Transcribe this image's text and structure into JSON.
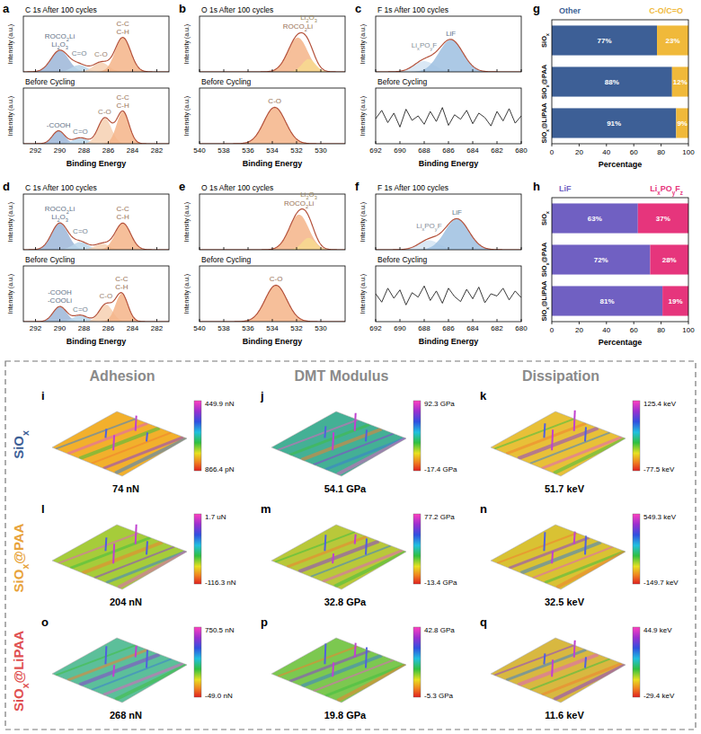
{
  "chart_data": [
    {
      "type": "line",
      "panel_label": "a",
      "x_label": "Binding Energy",
      "y_label": "Intensity (a.u.)",
      "xlim": [
        293,
        281
      ],
      "xticks": [
        292,
        290,
        288,
        286,
        284,
        282
      ],
      "tick_labels": "x",
      "subplots": [
        {
          "title": "C 1s After 100 cycles",
          "ylim": [
            0,
            1.3
          ],
          "peaks": [
            {
              "label": [
                "ROCO2Li",
                "Li2O3"
              ],
              "center": 290.0,
              "height": 0.5,
              "fwhm": 1.7,
              "color": "#9cb6d8"
            },
            {
              "label": [
                "C=O"
              ],
              "center": 288.4,
              "height": 0.16,
              "fwhm": 1.5,
              "color": "#b9d5ea"
            },
            {
              "label": [
                "C-O"
              ],
              "center": 286.6,
              "height": 0.22,
              "fwhm": 1.5,
              "color": "#f6d0b2"
            },
            {
              "label": [
                "C-C",
                "C-H"
              ],
              "center": 284.8,
              "height": 0.8,
              "fwhm": 1.5,
              "color": "#f4b488"
            }
          ]
        },
        {
          "title": "Before Cycling",
          "ylim": [
            0,
            1.3
          ],
          "peaks": [
            {
              "label": [
                "-COOH"
              ],
              "center": 290.1,
              "height": 0.3,
              "fwhm": 1.2,
              "color": "#9cb6d8"
            },
            {
              "label": [
                "C=O"
              ],
              "center": 288.3,
              "height": 0.14,
              "fwhm": 1.4,
              "color": "#b9d5ea"
            },
            {
              "label": [
                "C-O"
              ],
              "center": 286.3,
              "height": 0.6,
              "fwhm": 1.3,
              "color": "#f6d0b2"
            },
            {
              "label": [
                "C-C",
                "C-H"
              ],
              "center": 284.8,
              "height": 0.75,
              "fwhm": 1.2,
              "color": "#f4b488"
            }
          ]
        }
      ]
    },
    {
      "type": "line",
      "panel_label": "b",
      "x_label": "Binding Energy",
      "y_label": "Intensity (a.u.)",
      "xlim": [
        540,
        528
      ],
      "xticks": [
        540,
        538,
        536,
        534,
        532,
        530
      ],
      "tick_labels": "x",
      "subplots": [
        {
          "title": "O 1s After 100 cycles",
          "ylim": [
            0,
            1.3
          ],
          "peaks": [
            {
              "label": [
                "ROCO2Li"
              ],
              "center": 531.9,
              "height": 0.8,
              "fwhm": 1.9,
              "color": "#f4b488"
            },
            {
              "label": [
                "Li2O3"
              ],
              "center": 531.0,
              "height": 0.3,
              "fwhm": 1.3,
              "color": "#f7d98f"
            }
          ]
        },
        {
          "title": "Before Cycling",
          "ylim": [
            0,
            1.3
          ],
          "peaks": [
            {
              "label": [
                "C-O"
              ],
              "center": 533.8,
              "height": 0.85,
              "fwhm": 2.1,
              "color": "#f4b488"
            }
          ]
        }
      ]
    },
    {
      "type": "line",
      "panel_label": "c",
      "x_label": "Binding Energy",
      "y_label": "Intensity (a.u.)",
      "xlim": [
        692,
        680
      ],
      "xticks": [
        692,
        690,
        688,
        686,
        684,
        682,
        680
      ],
      "tick_labels": "x",
      "subplots": [
        {
          "title": "F 1s After 100 cycles",
          "ylim": [
            0,
            1.3
          ],
          "peaks": [
            {
              "label": [
                "LixPOyF"
              ],
              "center": 688.0,
              "height": 0.25,
              "fwhm": 2.0,
              "color": "#d3e4f3"
            },
            {
              "label": [
                "LiF"
              ],
              "center": 685.8,
              "height": 0.75,
              "fwhm": 2.3,
              "color": "#9dbfe0"
            }
          ]
        },
        {
          "title": "Before Cycling",
          "ylim": [
            0,
            1
          ],
          "series": [
            {
              "x": [
                692,
                691.5,
                691,
                690.5,
                690,
                689.5,
                689,
                688.5,
                688,
                687.5,
                687,
                686.5,
                686,
                685.5,
                685,
                684.5,
                684,
                683.5,
                683,
                682.5,
                682,
                681.5,
                681,
                680.5,
                680
              ],
              "values": [
                0.45,
                0.6,
                0.38,
                0.55,
                0.3,
                0.62,
                0.42,
                0.5,
                0.35,
                0.58,
                0.4,
                0.65,
                0.33,
                0.52,
                0.44,
                0.6,
                0.36,
                0.55,
                0.47,
                0.32,
                0.58,
                0.41,
                0.63,
                0.37,
                0.5
              ]
            }
          ]
        }
      ]
    },
    {
      "type": "line",
      "panel_label": "d",
      "x_label": "Binding Energy",
      "y_label": "Intensity (a.u.)",
      "xlim": [
        293,
        281
      ],
      "xticks": [
        292,
        290,
        288,
        286,
        284,
        282
      ],
      "tick_labels": "x",
      "subplots": [
        {
          "title": "C 1s After 100 cycles",
          "ylim": [
            0,
            1.3
          ],
          "peaks": [
            {
              "label": [
                "ROCO2Li",
                "Li2O3"
              ],
              "center": 290.0,
              "height": 0.62,
              "fwhm": 1.6,
              "color": "#9cb6d8"
            },
            {
              "label": [
                "C=O"
              ],
              "center": 288.3,
              "height": 0.18,
              "fwhm": 1.5,
              "color": "#b9d5ea"
            },
            {
              "center": 286.5,
              "height": 0.14,
              "fwhm": 1.4,
              "color": "#f6d0b2"
            },
            {
              "label": [
                "C-C",
                "C-H"
              ],
              "center": 284.8,
              "height": 0.62,
              "fwhm": 1.5,
              "color": "#f4b488"
            }
          ]
        },
        {
          "title": "Before Cycling",
          "ylim": [
            0,
            1.3
          ],
          "peaks": [
            {
              "label": [
                "-COOH",
                "-COOLi"
              ],
              "center": 290.0,
              "height": 0.35,
              "fwhm": 1.3,
              "color": "#9cb6d8"
            },
            {
              "label": [
                "C=O"
              ],
              "center": 288.3,
              "height": 0.15,
              "fwhm": 1.4,
              "color": "#b9d5ea"
            },
            {
              "label": [
                "C-O"
              ],
              "center": 286.2,
              "height": 0.4,
              "fwhm": 1.3,
              "color": "#f6d0b2"
            },
            {
              "label": [
                "C-C",
                "C-H"
              ],
              "center": 284.9,
              "height": 0.65,
              "fwhm": 1.2,
              "color": "#f4b488"
            }
          ]
        }
      ]
    },
    {
      "type": "line",
      "panel_label": "e",
      "x_label": "Binding Energy",
      "y_label": "Intensity (a.u.)",
      "xlim": [
        540,
        528
      ],
      "xticks": [
        540,
        538,
        536,
        534,
        532,
        530
      ],
      "tick_labels": "x",
      "subplots": [
        {
          "title": "O 1s After 100 cycles",
          "ylim": [
            0,
            1.3
          ],
          "peaks": [
            {
              "label": [
                "ROCO2Li"
              ],
              "center": 531.8,
              "height": 0.82,
              "fwhm": 1.9,
              "color": "#f4b488"
            },
            {
              "label": [
                "Li2O3"
              ],
              "center": 531.0,
              "height": 0.28,
              "fwhm": 1.3,
              "color": "#f7d98f"
            }
          ]
        },
        {
          "title": "Before Cycling",
          "ylim": [
            0,
            1.3
          ],
          "peaks": [
            {
              "label": [
                "C-O"
              ],
              "center": 533.7,
              "height": 0.85,
              "fwhm": 2.1,
              "color": "#f4b488"
            }
          ]
        }
      ]
    },
    {
      "type": "line",
      "panel_label": "f",
      "x_label": "Binding Energy",
      "y_label": "Intensity (a.u.)",
      "xlim": [
        692,
        680
      ],
      "xticks": [
        692,
        690,
        688,
        686,
        684,
        682,
        680
      ],
      "tick_labels": "x",
      "subplots": [
        {
          "title": "F 1s After 100 cycles",
          "ylim": [
            0,
            1.3
          ],
          "peaks": [
            {
              "label": [
                "LixPOyF"
              ],
              "center": 687.6,
              "height": 0.22,
              "fwhm": 2.0,
              "color": "#d3e4f3"
            },
            {
              "label": [
                "LiF"
              ],
              "center": 685.3,
              "height": 0.72,
              "fwhm": 2.3,
              "color": "#9dbfe0"
            }
          ]
        },
        {
          "title": "Before Cycling",
          "ylim": [
            0,
            1
          ],
          "series": [
            {
              "x": [
                692,
                691.5,
                691,
                690.5,
                690,
                689.5,
                689,
                688.5,
                688,
                687.5,
                687,
                686.5,
                686,
                685.5,
                685,
                684.5,
                684,
                683.5,
                683,
                682.5,
                682,
                681.5,
                681,
                680.5,
                680
              ],
              "values": [
                0.5,
                0.35,
                0.6,
                0.42,
                0.57,
                0.3,
                0.52,
                0.44,
                0.64,
                0.38,
                0.55,
                0.33,
                0.6,
                0.45,
                0.36,
                0.58,
                0.41,
                0.62,
                0.34,
                0.5,
                0.46,
                0.6,
                0.39,
                0.55,
                0.43
              ]
            }
          ]
        }
      ]
    },
    {
      "type": "bar",
      "panel_label": "g",
      "orientation": "horizontal",
      "stacked": true,
      "data_labels": true,
      "legend": "top",
      "categories": [
        "SiOx",
        "SiOx@PAA",
        "SiOx@LiPAA"
      ],
      "series": [
        {
          "name": "Other",
          "color": "#3d5f96",
          "values": [
            77,
            88,
            91
          ],
          "value_labels": [
            "77%",
            "88%",
            "91%"
          ]
        },
        {
          "name": "C-O/C=O",
          "color": "#f0b93a",
          "values": [
            23,
            12,
            9
          ],
          "value_labels": [
            "23%",
            "12%",
            "9%"
          ]
        }
      ],
      "x_label": "Percentage",
      "xlim": [
        0,
        100
      ],
      "xticks": [
        0,
        20,
        40,
        60,
        80,
        100
      ]
    },
    {
      "type": "bar",
      "panel_label": "h",
      "orientation": "horizontal",
      "stacked": true,
      "data_labels": true,
      "legend": "top",
      "categories": [
        "SiOx",
        "SiOx@PAA",
        "SiOx@LiPAA"
      ],
      "series": [
        {
          "name": "LiF",
          "color": "#7060c2",
          "values": [
            63,
            72,
            81
          ],
          "value_labels": [
            "63%",
            "72%",
            "81%"
          ]
        },
        {
          "name": "LixPOyFz",
          "color": "#e6357c",
          "values": [
            37,
            28,
            19
          ],
          "value_labels": [
            "37%",
            "28%",
            "19%"
          ]
        }
      ],
      "x_label": "Percentage",
      "xlim": [
        0,
        100
      ],
      "xticks": [
        0,
        20,
        40,
        60,
        80,
        100
      ]
    }
  ],
  "afm": {
    "columns": [
      "Adhesion",
      "DMT Modulus",
      "Dissipation"
    ],
    "rows": [
      {
        "name": "SiOx",
        "color": "#3d5f96",
        "cells": [
          {
            "panel_label": "i",
            "colorbar_max_label": "449.9 nN",
            "colorbar_min_label": "866.4 pN",
            "value_label": "74 nN"
          },
          {
            "panel_label": "j",
            "colorbar_max_label": "92.3 GPa",
            "colorbar_min_label": "-17.4 GPa",
            "value_label": "54.1 GPa"
          },
          {
            "panel_label": "k",
            "colorbar_max_label": "125.4 keV",
            "colorbar_min_label": "-77.5 keV",
            "value_label": "51.7 keV"
          }
        ]
      },
      {
        "name": "SiOx@PAA",
        "color": "#e8a33a",
        "cells": [
          {
            "panel_label": "l",
            "colorbar_max_label": "1.7 uN",
            "colorbar_min_label": "-116.3 nN",
            "value_label": "204 nN"
          },
          {
            "panel_label": "m",
            "colorbar_max_label": "77.2 GPa",
            "colorbar_min_label": "-13.4 GPa",
            "value_label": "32.8 GPa"
          },
          {
            "panel_label": "n",
            "colorbar_max_label": "549.3 keV",
            "colorbar_min_label": "-149.7 keV",
            "value_label": "32.5 keV"
          }
        ]
      },
      {
        "name": "SiOx@LiPAA",
        "color": "#e05050",
        "cells": [
          {
            "panel_label": "o",
            "colorbar_max_label": "750.5 nN",
            "colorbar_min_label": "-49.0 nN",
            "value_label": "268 nN"
          },
          {
            "panel_label": "p",
            "colorbar_max_label": "42.8 GPa",
            "colorbar_min_label": "-5.3 GPa",
            "value_label": "19.8 GPa"
          },
          {
            "panel_label": "q",
            "colorbar_max_label": "44.9 keV",
            "colorbar_min_label": "-29.4 keV",
            "value_label": "11.6 keV"
          }
        ]
      }
    ]
  }
}
